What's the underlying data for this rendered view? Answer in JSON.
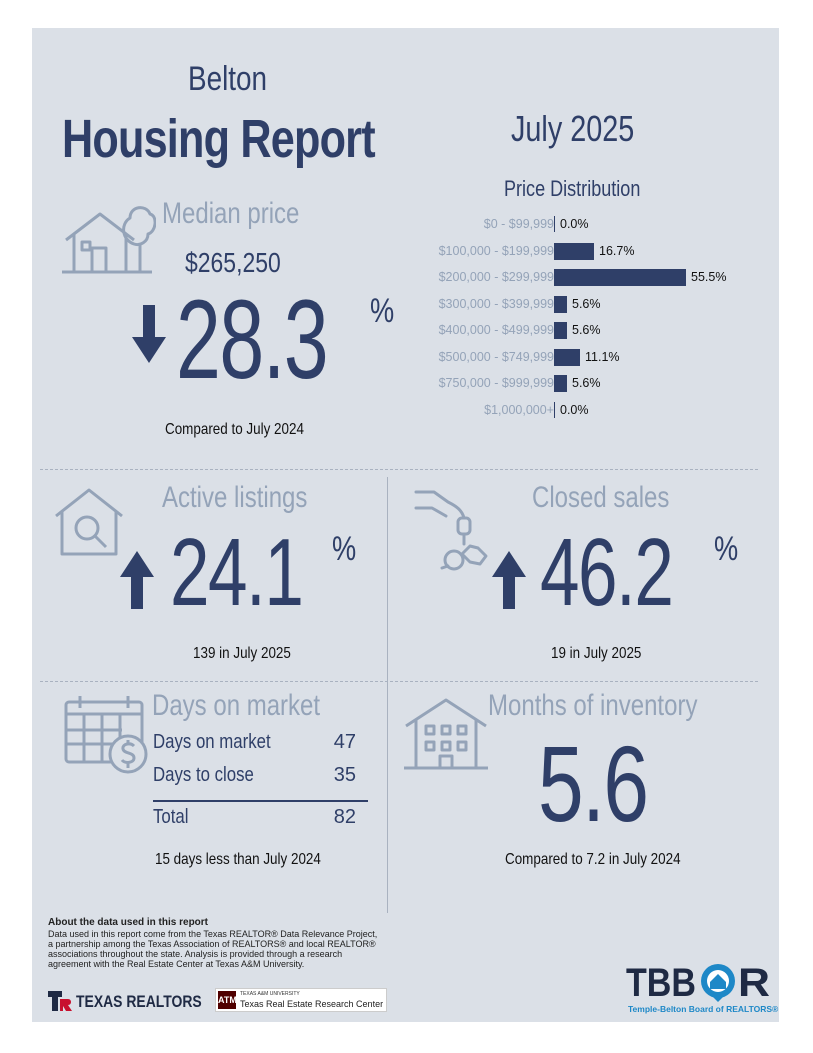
{
  "header": {
    "city": "Belton",
    "title": "Housing Report",
    "period": "July 2025"
  },
  "median_price": {
    "label": "Median price",
    "value": "$265,250",
    "change": "28.3",
    "percent_sign": "%",
    "direction": "down",
    "caption": "Compared to July 2024"
  },
  "price_distribution": {
    "title": "Price Distribution",
    "rows": [
      {
        "range": "$0 - $99,999",
        "value": "0.0%"
      },
      {
        "range": "$100,000 - $199,999",
        "value": "16.7%"
      },
      {
        "range": "$200,000 - $299,999",
        "value": "55.5%"
      },
      {
        "range": "$300,000 - $399,999",
        "value": "5.6%"
      },
      {
        "range": "$400,000 - $499,999",
        "value": "5.6%"
      },
      {
        "range": "$500,000 - $749,999",
        "value": "11.1%"
      },
      {
        "range": "$750,000 - $999,999",
        "value": "5.6%"
      },
      {
        "range": "$1,000,000+",
        "value": "0.0%"
      }
    ]
  },
  "chart_data": {
    "type": "bar",
    "title": "Price Distribution",
    "categories": [
      "$0 - $99,999",
      "$100,000 - $199,999",
      "$200,000 - $299,999",
      "$300,000 - $399,999",
      "$400,000 - $499,999",
      "$500,000 - $749,999",
      "$750,000 - $999,999",
      "$1,000,000+"
    ],
    "values": [
      0.0,
      16.7,
      55.5,
      5.6,
      5.6,
      11.1,
      5.6,
      0.0
    ],
    "orientation": "horizontal",
    "xlabel": "",
    "ylabel": ""
  },
  "active_listings": {
    "label": "Active listings",
    "change": "24.1",
    "percent_sign": "%",
    "direction": "up",
    "caption": "139 in July 2025"
  },
  "closed_sales": {
    "label": "Closed sales",
    "change": "46.2",
    "percent_sign": "%",
    "direction": "up",
    "caption": "19 in July 2025"
  },
  "days_on_market": {
    "label": "Days on market",
    "rows": [
      {
        "label": "Days on market",
        "value": "47"
      },
      {
        "label": "Days to close",
        "value": "35"
      }
    ],
    "total_label": "Total",
    "total_value": "82",
    "caption": "15 days less than July 2024"
  },
  "months_inventory": {
    "label": "Months of inventory",
    "value": "5.6",
    "caption": "Compared to 7.2 in July 2024"
  },
  "about": {
    "heading": "About the data used in this report",
    "body": "Data used in this report come from the Texas REALTOR® Data Relevance Project, a partnership among the Texas Association of REALTORS® and local REALTOR® associations throughout the state. Analysis is provided through a research agreement with the Real Estate Center at Texas A&M University."
  },
  "footer": {
    "texas_realtors": "TEXAS REALTORS",
    "tamu_small": "TEXAS A&M UNIVERSITY",
    "tamu_center": "Texas Real Estate Research Center",
    "tbbor_logo": "TBBOR",
    "tbbor_name": "Temple-Belton Board of REALTORS®"
  },
  "colors": {
    "navy": "#2f3f68",
    "slate": "#94a3b8",
    "panel": "#dbe0e7",
    "accent_blue": "#1e88c7",
    "texas_red": "#c8102e",
    "tamu_maroon": "#500000"
  }
}
